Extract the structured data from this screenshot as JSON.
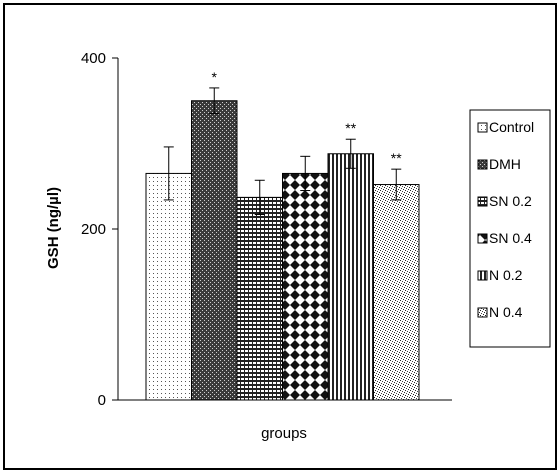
{
  "chart_data": {
    "type": "bar",
    "title": "",
    "xlabel": "groups",
    "ylabel": "GSH (ng/µl)",
    "ylim": [
      0,
      400
    ],
    "yticks": [
      0,
      200,
      400
    ],
    "grid": false,
    "legend_position": "right",
    "series": [
      {
        "name": "Control",
        "value": 265,
        "error": 31,
        "sig": "",
        "pattern": "dots"
      },
      {
        "name": "DMH",
        "value": 350,
        "error": 15,
        "sig": "*",
        "pattern": "dark-cross"
      },
      {
        "name": "SN 0.2",
        "value": 237,
        "error": 20,
        "sig": "",
        "pattern": "grid"
      },
      {
        "name": "SN 0.4",
        "value": 265,
        "error": 20,
        "sig": "",
        "pattern": "diamond"
      },
      {
        "name": "N 0.2",
        "value": 288,
        "error": 17,
        "sig": "**",
        "pattern": "vertical"
      },
      {
        "name": "N 0.4",
        "value": 252,
        "error": 18,
        "sig": "**",
        "pattern": "speckle"
      }
    ]
  }
}
